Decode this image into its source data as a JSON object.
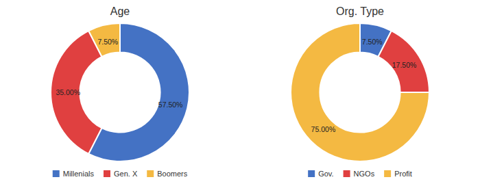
{
  "chart_data": [
    {
      "type": "donut",
      "title": "Age",
      "categories": [
        "Millenials",
        "Gen. X",
        "Boomers"
      ],
      "values": [
        57.5,
        35.0,
        7.5
      ],
      "value_labels": [
        "57.50%",
        "35.00%",
        "7.50%"
      ],
      "colors": [
        "#4472C4",
        "#E04040",
        "#F4B942"
      ],
      "data_labels": true,
      "legend": "bottom"
    },
    {
      "type": "donut",
      "title": "Org. Type",
      "categories": [
        "Gov.",
        "NGOs",
        "Profit"
      ],
      "values": [
        7.5,
        17.5,
        75.0
      ],
      "value_labels": [
        "7.50%",
        "17.50%",
        "75.00%"
      ],
      "colors": [
        "#4472C4",
        "#E04040",
        "#F4B942"
      ],
      "data_labels": true,
      "legend": "bottom"
    }
  ]
}
